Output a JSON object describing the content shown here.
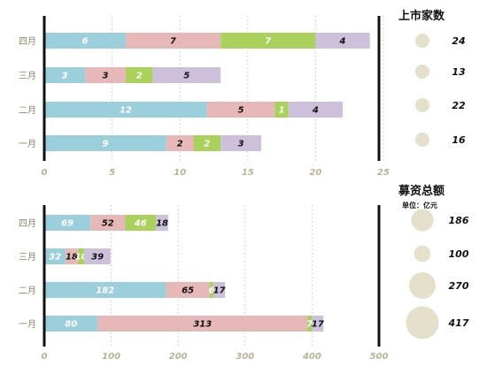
{
  "chart_data": [
    {
      "type": "bar",
      "orientation": "horizontal",
      "stacked": true,
      "categories": [
        "四月",
        "三月",
        "二月",
        "一月"
      ],
      "series": [
        {
          "values": [
            6,
            3,
            12,
            9
          ]
        },
        {
          "values": [
            7,
            3,
            5,
            2
          ]
        },
        {
          "values": [
            7,
            2,
            1,
            2
          ]
        },
        {
          "values": [
            4,
            5,
            4,
            3
          ]
        }
      ],
      "xlim": [
        0,
        25
      ],
      "xticks": [
        0,
        5,
        10,
        15,
        20,
        25
      ],
      "grid": "vertical-dotted",
      "side": {
        "title": "上市家数",
        "subtitle": "",
        "values": [
          24,
          13,
          22,
          16
        ]
      }
    },
    {
      "type": "bar",
      "orientation": "horizontal",
      "stacked": true,
      "categories": [
        "四月",
        "三月",
        "二月",
        "一月"
      ],
      "series": [
        {
          "values": [
            69,
            32,
            182,
            80
          ]
        },
        {
          "values": [
            52,
            18,
            65,
            313
          ]
        },
        {
          "values": [
            46,
            10,
            6,
            7
          ]
        },
        {
          "values": [
            18,
            39,
            17,
            17
          ]
        }
      ],
      "xlim": [
        0,
        500
      ],
      "xticks": [
        0,
        100,
        200,
        300,
        400,
        500
      ],
      "grid": "vertical-dotted",
      "side": {
        "title": "募资总额",
        "subtitle": "单位：亿元",
        "values": [
          186,
          100,
          270,
          417
        ]
      }
    }
  ],
  "colors": {
    "series": [
      "#9ccfdc",
      "#e6b8b7",
      "#a9d15c",
      "#ccc0da"
    ],
    "label_text": [
      "#ffffff",
      "#111111",
      "#ffffff",
      "#111111"
    ],
    "bubble": "#e4e0cc",
    "axis": "#111111",
    "grid": "#cfc9a8"
  }
}
